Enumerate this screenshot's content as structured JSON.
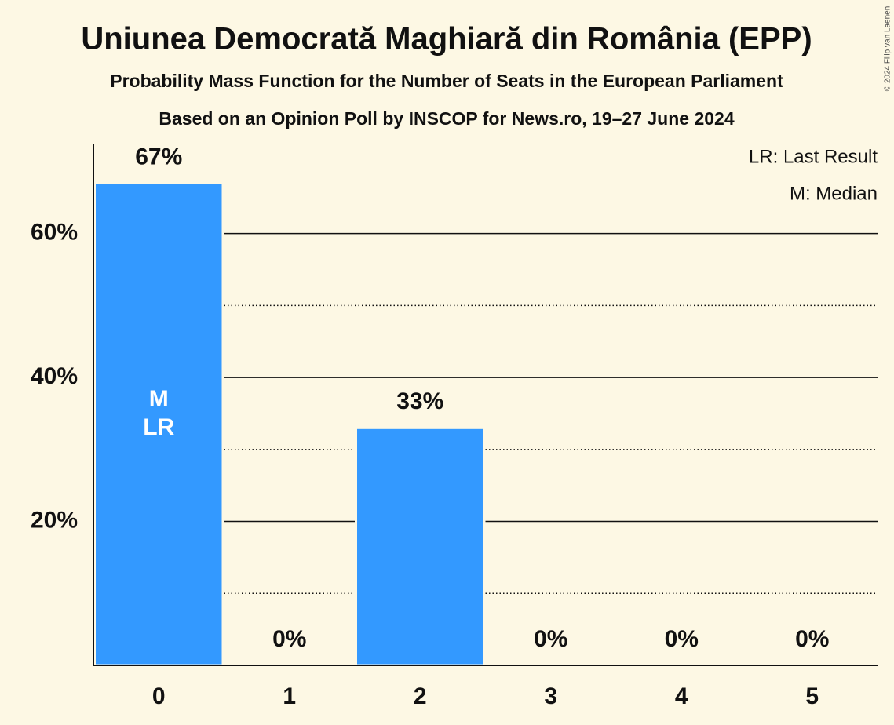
{
  "chart_data": {
    "type": "bar",
    "title": "Uniunea Democrată Maghiară din România (EPP)",
    "subtitle": "Probability Mass Function for the Number of Seats in the European Parliament",
    "subtitle2": "Based on an Opinion Poll by INSCOP for News.ro, 19–27 June 2024",
    "copyright": "© 2024 Filip van Laenen",
    "categories": [
      "0",
      "1",
      "2",
      "3",
      "4",
      "5"
    ],
    "values": [
      67,
      0,
      33,
      0,
      0,
      0
    ],
    "value_labels": [
      "67%",
      "0%",
      "33%",
      "0%",
      "0%",
      "0%"
    ],
    "color": "#3399ff",
    "ylim": [
      0,
      72.5
    ],
    "yticks": [
      {
        "value": 20,
        "label": "20%"
      },
      {
        "value": 40,
        "label": "40%"
      },
      {
        "value": 60,
        "label": "60%"
      }
    ],
    "minor_yticks": [
      10,
      30,
      50
    ],
    "grid": true,
    "markers": [
      {
        "category": "0",
        "labels": [
          "M",
          "LR"
        ]
      }
    ],
    "legend": [
      "LR: Last Result",
      "M: Median"
    ],
    "legend_position": "top-right"
  }
}
